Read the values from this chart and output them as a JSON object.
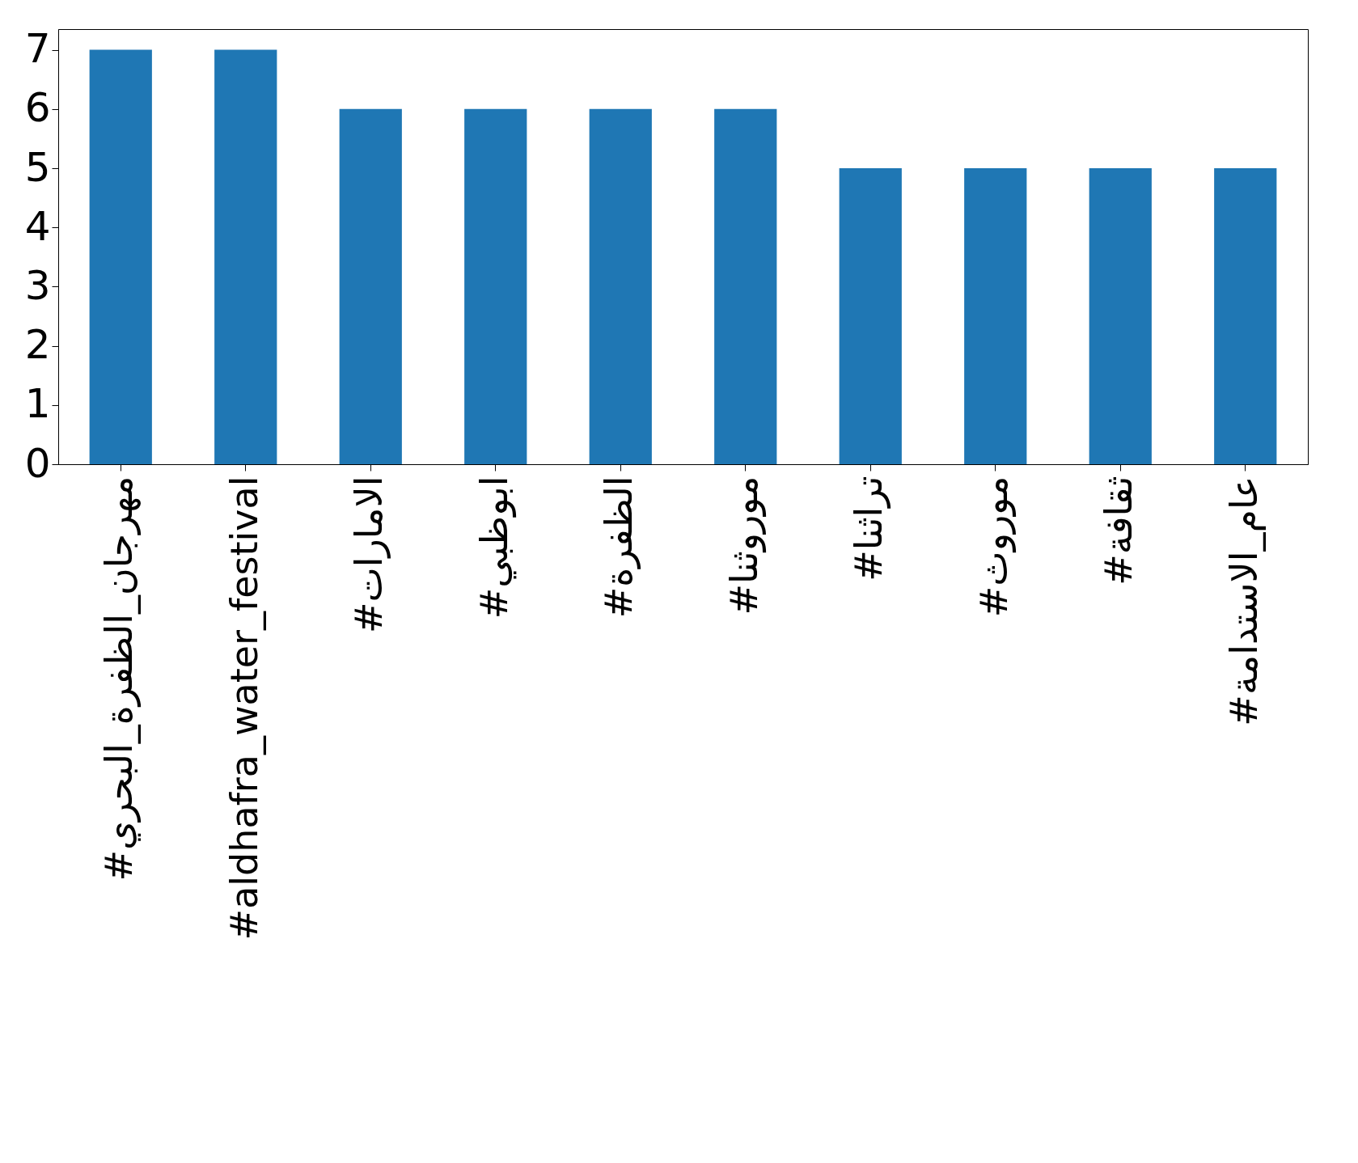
{
  "chart_data": {
    "type": "bar",
    "categories": [
      "#مهرجان_الظفرة_البحري",
      "#aldhafra_water_festival",
      "#الامارات",
      "#ابوظبي",
      "#الظفرة",
      "#موروثنا",
      "#تراثنا",
      "#موروث",
      "#ثقافة",
      "#عام_الاستدامة"
    ],
    "values": [
      7,
      7,
      6,
      6,
      6,
      6,
      5,
      5,
      5,
      5
    ],
    "color": "#1f77b4",
    "ylim": [
      0,
      7.35
    ],
    "yticks": [
      0,
      1,
      2,
      3,
      4,
      5,
      6,
      7
    ],
    "grid": false
  }
}
